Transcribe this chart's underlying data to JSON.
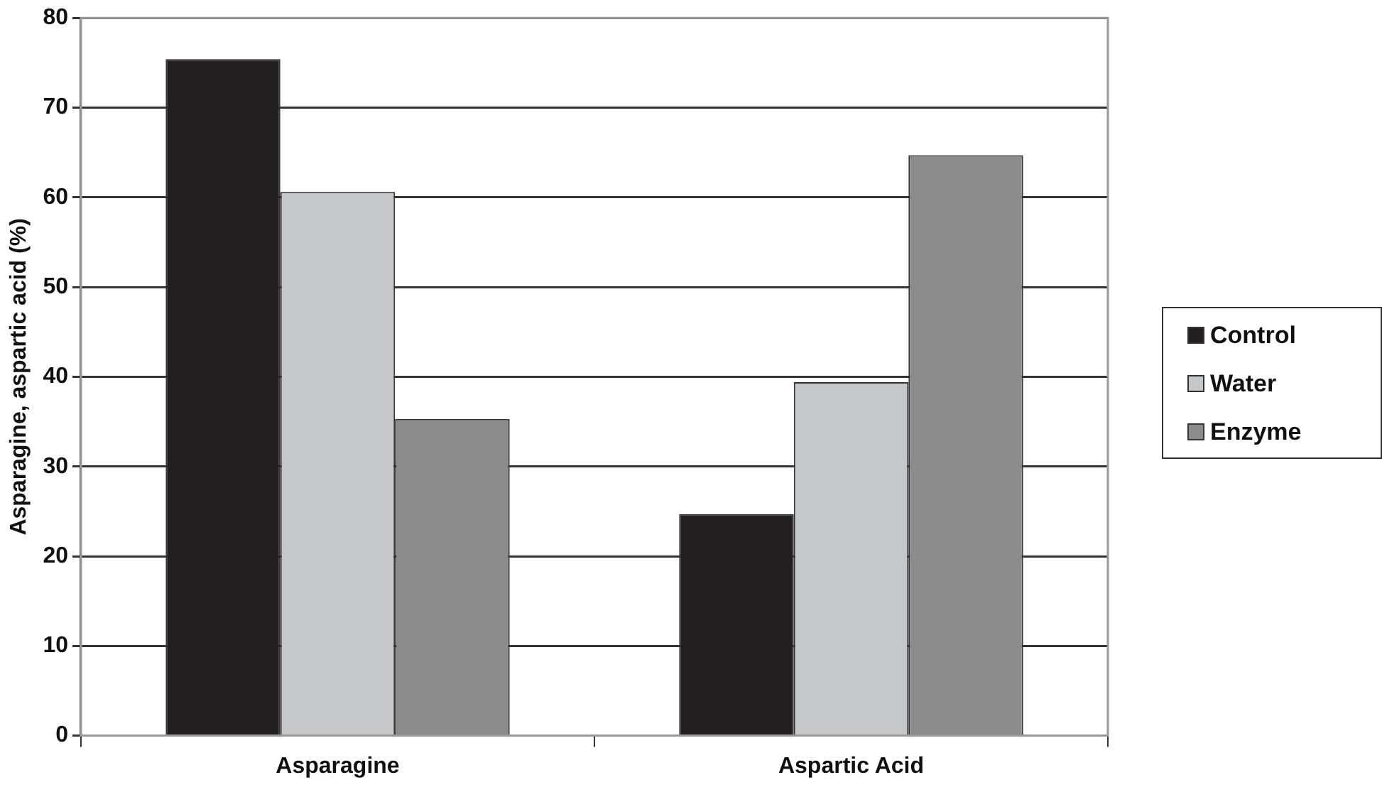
{
  "chart_data": {
    "type": "bar",
    "ylabel": "Asparagine, aspartic acid (%)",
    "categories": [
      "Asparagine",
      "Aspartic Acid"
    ],
    "series": [
      {
        "name": "Control",
        "color": "#231f20",
        "values": [
          75.4,
          24.7
        ]
      },
      {
        "name": "Water",
        "color": "#c6c7c9",
        "values": [
          60.6,
          39.4
        ]
      },
      {
        "name": "Enzyme",
        "color": "#8c8c8c",
        "values": [
          35.3,
          64.7
        ]
      }
    ],
    "ylim": [
      0,
      80
    ],
    "yticks": [
      0,
      10,
      20,
      30,
      40,
      50,
      60,
      70,
      80
    ],
    "grid": "y",
    "legend": "right"
  }
}
